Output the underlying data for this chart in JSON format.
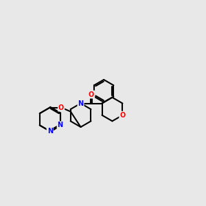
{
  "background_color": "#e8e8e8",
  "bond_color": "#000000",
  "N_color": "#0000ff",
  "O_color": "#ff0000",
  "line_width": 1.5,
  "figsize": [
    3.0,
    3.0
  ],
  "dpi": 100,
  "xlim": [
    0,
    10
  ],
  "ylim": [
    0,
    10
  ]
}
